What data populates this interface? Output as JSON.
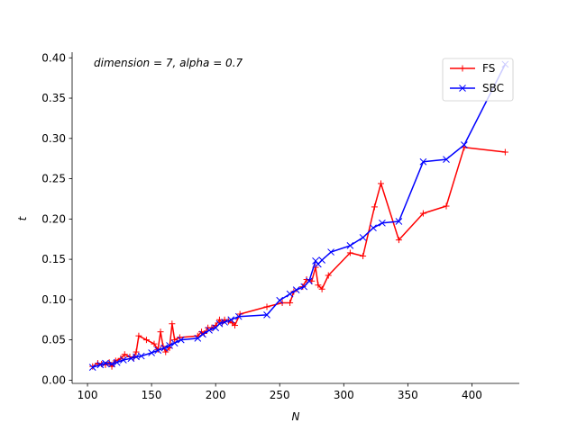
{
  "chart_data": {
    "type": "line",
    "annotation": "dimension = 7, alpha = 0.7",
    "xlabel": "N",
    "ylabel": "t",
    "xlim": [
      88,
      437
    ],
    "ylim": [
      -0.004,
      0.407
    ],
    "xticks": [
      100,
      150,
      200,
      250,
      300,
      350,
      400
    ],
    "yticks": [
      0.0,
      0.05,
      0.1,
      0.15,
      0.2,
      0.25,
      0.3,
      0.35,
      0.4
    ],
    "ytick_labels": [
      "0.00",
      "0.05",
      "0.10",
      "0.15",
      "0.20",
      "0.25",
      "0.30",
      "0.35",
      "0.40"
    ],
    "grid": false,
    "legend_position": "top-right",
    "series": [
      {
        "name": "FS",
        "color": "#ff0000",
        "marker": "plus",
        "x": [
          104,
          108,
          111,
          114,
          117,
          119,
          122,
          126,
          129,
          133,
          136,
          138,
          140,
          146,
          152,
          155,
          157,
          159,
          161,
          164,
          166,
          168,
          172,
          186,
          189,
          191,
          194,
          197,
          200,
          203,
          205,
          207,
          210,
          213,
          215,
          219,
          240,
          252,
          258,
          261,
          268,
          271,
          275,
          278,
          280,
          283,
          288,
          305,
          315,
          324,
          329,
          343,
          362,
          380,
          394,
          426
        ],
        "y": [
          0.017,
          0.021,
          0.02,
          0.019,
          0.022,
          0.017,
          0.024,
          0.027,
          0.032,
          0.029,
          0.028,
          0.035,
          0.055,
          0.05,
          0.045,
          0.038,
          0.06,
          0.042,
          0.035,
          0.04,
          0.07,
          0.05,
          0.053,
          0.055,
          0.06,
          0.058,
          0.065,
          0.065,
          0.068,
          0.075,
          0.071,
          0.075,
          0.073,
          0.071,
          0.068,
          0.082,
          0.091,
          0.096,
          0.096,
          0.11,
          0.116,
          0.125,
          0.123,
          0.14,
          0.118,
          0.113,
          0.13,
          0.158,
          0.154,
          0.215,
          0.244,
          0.174,
          0.207,
          0.216,
          0.289,
          0.283
        ]
      },
      {
        "name": "SBC",
        "color": "#0000ff",
        "marker": "x",
        "x": [
          104,
          110,
          114,
          119,
          123,
          128,
          134,
          138,
          142,
          150,
          155,
          160,
          164,
          168,
          173,
          186,
          190,
          195,
          200,
          203,
          207,
          212,
          218,
          240,
          250,
          258,
          263,
          269,
          273,
          278,
          280,
          283,
          290,
          305,
          315,
          323,
          330,
          343,
          362,
          380,
          394,
          426
        ],
        "y": [
          0.016,
          0.019,
          0.021,
          0.02,
          0.022,
          0.025,
          0.027,
          0.029,
          0.03,
          0.034,
          0.037,
          0.04,
          0.043,
          0.046,
          0.05,
          0.052,
          0.057,
          0.062,
          0.065,
          0.07,
          0.072,
          0.075,
          0.079,
          0.081,
          0.099,
          0.107,
          0.112,
          0.116,
          0.123,
          0.148,
          0.144,
          0.149,
          0.159,
          0.167,
          0.177,
          0.189,
          0.195,
          0.197,
          0.271,
          0.274,
          0.292,
          0.392
        ]
      }
    ]
  }
}
